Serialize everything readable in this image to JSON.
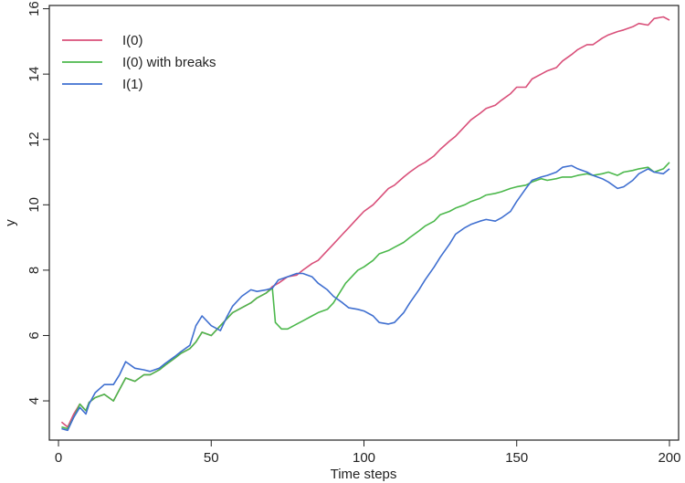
{
  "chart_data": {
    "type": "line",
    "title": "",
    "xlabel": "Time steps",
    "ylabel": "y",
    "xlim": [
      -3,
      203
    ],
    "ylim": [
      2.8,
      16.1
    ],
    "xticks": [
      0,
      50,
      100,
      150,
      200
    ],
    "yticks": [
      4,
      6,
      8,
      10,
      12,
      14,
      16
    ],
    "grid": false,
    "legend_position": "top-left",
    "series": [
      {
        "name": "I(0)",
        "color": "#d9507a",
        "points": [
          [
            1,
            3.35
          ],
          [
            3,
            3.2
          ],
          [
            5,
            3.6
          ],
          [
            7,
            3.9
          ],
          [
            9,
            3.7
          ],
          [
            10,
            3.95
          ],
          [
            12,
            4.1
          ],
          [
            15,
            4.2
          ],
          [
            18,
            4.0
          ],
          [
            20,
            4.35
          ],
          [
            22,
            4.7
          ],
          [
            25,
            4.6
          ],
          [
            28,
            4.8
          ],
          [
            30,
            4.8
          ],
          [
            33,
            4.95
          ],
          [
            35,
            5.1
          ],
          [
            38,
            5.3
          ],
          [
            40,
            5.45
          ],
          [
            43,
            5.6
          ],
          [
            45,
            5.8
          ],
          [
            47,
            6.1
          ],
          [
            50,
            6.0
          ],
          [
            53,
            6.3
          ],
          [
            55,
            6.5
          ],
          [
            57,
            6.7
          ],
          [
            60,
            6.85
          ],
          [
            63,
            7.0
          ],
          [
            65,
            7.15
          ],
          [
            68,
            7.3
          ],
          [
            70,
            7.5
          ],
          [
            72,
            7.6
          ],
          [
            75,
            7.8
          ],
          [
            78,
            7.85
          ],
          [
            80,
            8.0
          ],
          [
            83,
            8.2
          ],
          [
            85,
            8.3
          ],
          [
            88,
            8.6
          ],
          [
            90,
            8.8
          ],
          [
            93,
            9.1
          ],
          [
            95,
            9.3
          ],
          [
            98,
            9.6
          ],
          [
            100,
            9.8
          ],
          [
            103,
            10.0
          ],
          [
            105,
            10.2
          ],
          [
            108,
            10.5
          ],
          [
            110,
            10.6
          ],
          [
            113,
            10.85
          ],
          [
            115,
            11.0
          ],
          [
            118,
            11.2
          ],
          [
            120,
            11.3
          ],
          [
            123,
            11.5
          ],
          [
            125,
            11.7
          ],
          [
            128,
            11.95
          ],
          [
            130,
            12.1
          ],
          [
            133,
            12.4
          ],
          [
            135,
            12.6
          ],
          [
            138,
            12.8
          ],
          [
            140,
            12.95
          ],
          [
            143,
            13.05
          ],
          [
            145,
            13.2
          ],
          [
            148,
            13.4
          ],
          [
            150,
            13.6
          ],
          [
            153,
            13.6
          ],
          [
            155,
            13.85
          ],
          [
            158,
            14.0
          ],
          [
            160,
            14.1
          ],
          [
            163,
            14.2
          ],
          [
            165,
            14.4
          ],
          [
            168,
            14.6
          ],
          [
            170,
            14.75
          ],
          [
            173,
            14.9
          ],
          [
            175,
            14.9
          ],
          [
            178,
            15.1
          ],
          [
            180,
            15.2
          ],
          [
            183,
            15.3
          ],
          [
            185,
            15.35
          ],
          [
            188,
            15.45
          ],
          [
            190,
            15.55
          ],
          [
            193,
            15.5
          ],
          [
            195,
            15.7
          ],
          [
            198,
            15.75
          ],
          [
            200,
            15.65
          ]
        ]
      },
      {
        "name": "I(0) with breaks",
        "color": "#4cb84c",
        "points": [
          [
            1,
            3.2
          ],
          [
            3,
            3.15
          ],
          [
            5,
            3.5
          ],
          [
            7,
            3.9
          ],
          [
            9,
            3.7
          ],
          [
            10,
            3.95
          ],
          [
            12,
            4.1
          ],
          [
            15,
            4.2
          ],
          [
            18,
            4.0
          ],
          [
            20,
            4.35
          ],
          [
            22,
            4.7
          ],
          [
            25,
            4.6
          ],
          [
            28,
            4.8
          ],
          [
            30,
            4.8
          ],
          [
            33,
            4.95
          ],
          [
            35,
            5.1
          ],
          [
            38,
            5.3
          ],
          [
            40,
            5.45
          ],
          [
            43,
            5.6
          ],
          [
            45,
            5.8
          ],
          [
            47,
            6.1
          ],
          [
            50,
            6.0
          ],
          [
            53,
            6.3
          ],
          [
            55,
            6.5
          ],
          [
            57,
            6.7
          ],
          [
            60,
            6.85
          ],
          [
            63,
            7.0
          ],
          [
            65,
            7.15
          ],
          [
            68,
            7.3
          ],
          [
            70,
            7.45
          ],
          [
            71,
            6.4
          ],
          [
            73,
            6.2
          ],
          [
            75,
            6.2
          ],
          [
            78,
            6.35
          ],
          [
            80,
            6.45
          ],
          [
            83,
            6.6
          ],
          [
            85,
            6.7
          ],
          [
            88,
            6.8
          ],
          [
            90,
            7.0
          ],
          [
            92,
            7.3
          ],
          [
            94,
            7.6
          ],
          [
            96,
            7.8
          ],
          [
            98,
            8.0
          ],
          [
            100,
            8.1
          ],
          [
            103,
            8.3
          ],
          [
            105,
            8.5
          ],
          [
            108,
            8.6
          ],
          [
            110,
            8.7
          ],
          [
            113,
            8.85
          ],
          [
            115,
            9.0
          ],
          [
            118,
            9.2
          ],
          [
            120,
            9.35
          ],
          [
            123,
            9.5
          ],
          [
            125,
            9.7
          ],
          [
            128,
            9.8
          ],
          [
            130,
            9.9
          ],
          [
            133,
            10.0
          ],
          [
            135,
            10.1
          ],
          [
            138,
            10.2
          ],
          [
            140,
            10.3
          ],
          [
            143,
            10.35
          ],
          [
            145,
            10.4
          ],
          [
            148,
            10.5
          ],
          [
            150,
            10.55
          ],
          [
            153,
            10.6
          ],
          [
            155,
            10.7
          ],
          [
            158,
            10.8
          ],
          [
            160,
            10.75
          ],
          [
            163,
            10.8
          ],
          [
            165,
            10.85
          ],
          [
            168,
            10.85
          ],
          [
            170,
            10.9
          ],
          [
            173,
            10.95
          ],
          [
            175,
            10.9
          ],
          [
            178,
            10.95
          ],
          [
            180,
            11.0
          ],
          [
            183,
            10.9
          ],
          [
            185,
            11.0
          ],
          [
            188,
            11.05
          ],
          [
            190,
            11.1
          ],
          [
            193,
            11.15
          ],
          [
            195,
            11.0
          ],
          [
            198,
            11.1
          ],
          [
            200,
            11.3
          ]
        ]
      },
      {
        "name": "I(1)",
        "color": "#3f6fd0",
        "points": [
          [
            1,
            3.15
          ],
          [
            3,
            3.1
          ],
          [
            5,
            3.5
          ],
          [
            7,
            3.8
          ],
          [
            9,
            3.6
          ],
          [
            10,
            3.9
          ],
          [
            12,
            4.25
          ],
          [
            15,
            4.5
          ],
          [
            18,
            4.5
          ],
          [
            20,
            4.8
          ],
          [
            22,
            5.2
          ],
          [
            25,
            5.0
          ],
          [
            28,
            4.95
          ],
          [
            30,
            4.9
          ],
          [
            33,
            5.0
          ],
          [
            35,
            5.15
          ],
          [
            38,
            5.35
          ],
          [
            40,
            5.5
          ],
          [
            43,
            5.7
          ],
          [
            45,
            6.3
          ],
          [
            47,
            6.6
          ],
          [
            50,
            6.3
          ],
          [
            53,
            6.15
          ],
          [
            55,
            6.55
          ],
          [
            57,
            6.9
          ],
          [
            60,
            7.2
          ],
          [
            63,
            7.4
          ],
          [
            65,
            7.35
          ],
          [
            68,
            7.4
          ],
          [
            70,
            7.45
          ],
          [
            72,
            7.7
          ],
          [
            75,
            7.8
          ],
          [
            78,
            7.9
          ],
          [
            80,
            7.9
          ],
          [
            83,
            7.8
          ],
          [
            85,
            7.6
          ],
          [
            88,
            7.4
          ],
          [
            90,
            7.2
          ],
          [
            93,
            7.0
          ],
          [
            95,
            6.85
          ],
          [
            98,
            6.8
          ],
          [
            100,
            6.75
          ],
          [
            103,
            6.6
          ],
          [
            105,
            6.4
          ],
          [
            108,
            6.35
          ],
          [
            110,
            6.4
          ],
          [
            113,
            6.7
          ],
          [
            115,
            7.0
          ],
          [
            118,
            7.4
          ],
          [
            120,
            7.7
          ],
          [
            123,
            8.1
          ],
          [
            125,
            8.4
          ],
          [
            128,
            8.8
          ],
          [
            130,
            9.1
          ],
          [
            133,
            9.3
          ],
          [
            135,
            9.4
          ],
          [
            138,
            9.5
          ],
          [
            140,
            9.55
          ],
          [
            143,
            9.5
          ],
          [
            145,
            9.6
          ],
          [
            148,
            9.8
          ],
          [
            150,
            10.1
          ],
          [
            153,
            10.5
          ],
          [
            155,
            10.75
          ],
          [
            158,
            10.85
          ],
          [
            160,
            10.9
          ],
          [
            163,
            11.0
          ],
          [
            165,
            11.15
          ],
          [
            168,
            11.2
          ],
          [
            170,
            11.1
          ],
          [
            173,
            11.0
          ],
          [
            175,
            10.9
          ],
          [
            178,
            10.8
          ],
          [
            180,
            10.7
          ],
          [
            183,
            10.5
          ],
          [
            185,
            10.55
          ],
          [
            188,
            10.75
          ],
          [
            190,
            10.95
          ],
          [
            193,
            11.1
          ],
          [
            195,
            11.0
          ],
          [
            198,
            10.95
          ],
          [
            200,
            11.1
          ]
        ]
      }
    ]
  }
}
